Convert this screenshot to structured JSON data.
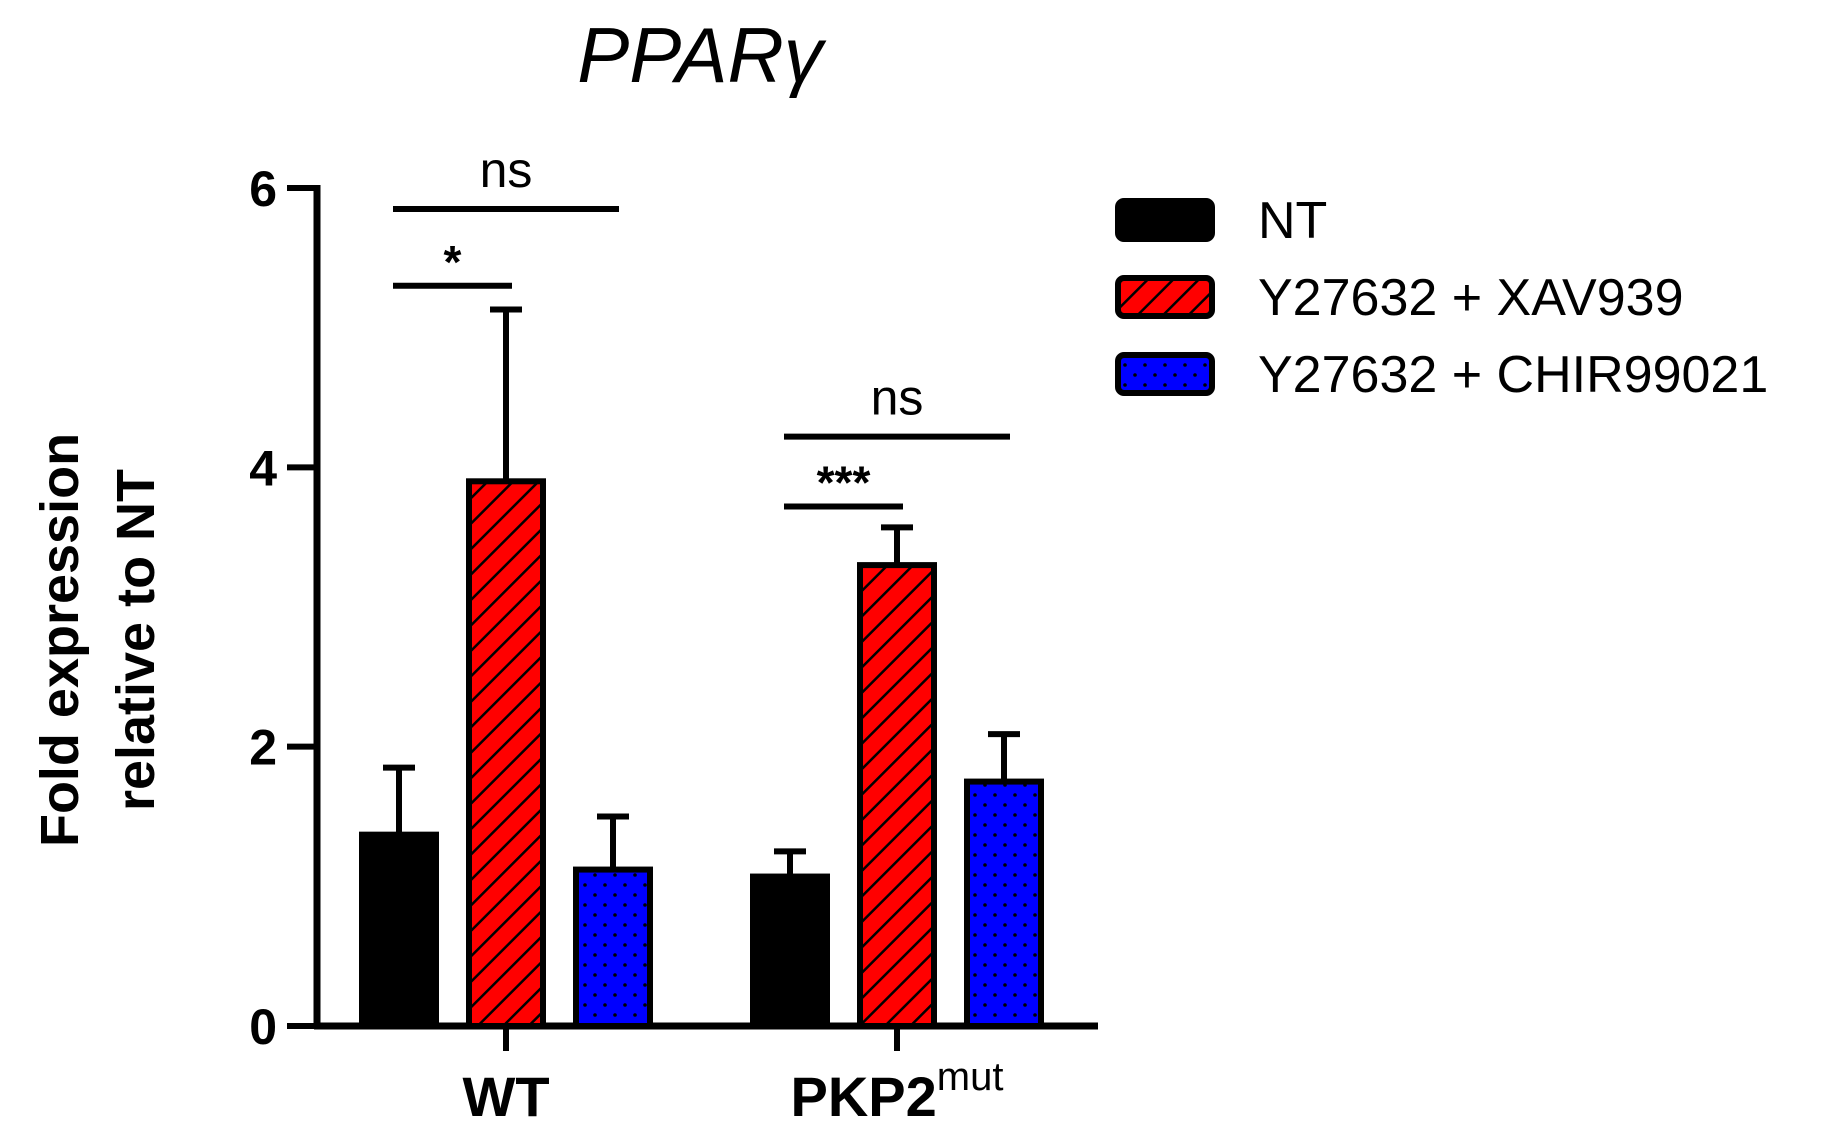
{
  "chart_data": {
    "type": "bar",
    "title": "PPARγ",
    "ylabel_lines": [
      "Fold expression",
      "relative to NT"
    ],
    "xlabel": "",
    "ylim": [
      0,
      6
    ],
    "yticks": [
      "0",
      "2",
      "4",
      "6"
    ],
    "categories": [
      {
        "base": "WT",
        "sup": ""
      },
      {
        "base": "PKP2",
        "sup": "mut"
      }
    ],
    "series": [
      {
        "name": "NT",
        "color": "#000000",
        "pattern": "solid",
        "values": [
          1.37,
          1.07
        ],
        "errors": [
          0.48,
          0.18
        ]
      },
      {
        "name": "Y27632 + XAV939",
        "color": "#ff0000",
        "pattern": "hatch",
        "values": [
          3.9,
          3.3
        ],
        "errors": [
          1.23,
          0.27
        ]
      },
      {
        "name": "Y27632 + CHIR99021",
        "color": "#0000ff",
        "pattern": "dots",
        "values": [
          1.12,
          1.75
        ],
        "errors": [
          0.38,
          0.34
        ]
      }
    ],
    "legend_position": "right",
    "annotations": [
      {
        "group": 0,
        "from": 0,
        "to": 2,
        "label": "ns",
        "y": 5.85
      },
      {
        "group": 0,
        "from": 0,
        "to": 1,
        "label": "*",
        "y": 5.3
      },
      {
        "group": 1,
        "from": 0,
        "to": 2,
        "label": "ns",
        "y": 4.22
      },
      {
        "group": 1,
        "from": 0,
        "to": 1,
        "label": "***",
        "y": 3.72
      }
    ]
  }
}
